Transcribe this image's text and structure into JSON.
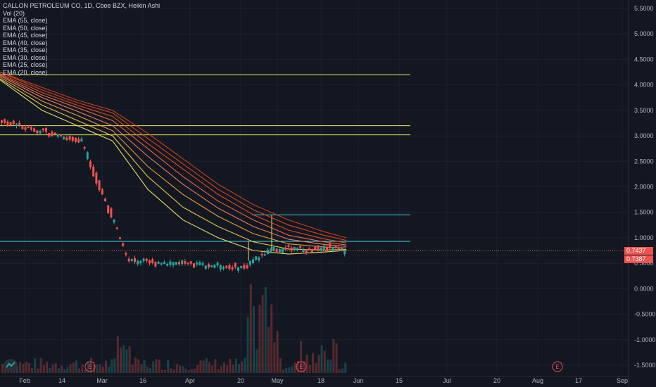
{
  "header": {
    "symbol_line": "CALLON PETROLEUM CO, 1D, Cboe BZX, Heikin Ashi",
    "indicators": [
      "Vol (20)",
      "EMA (55, close)",
      "EMA (50, close)",
      "EMA (45, close)",
      "EMA (40, close)",
      "EMA (35, close)",
      "EMA (30, close)",
      "EMA (25, close)",
      "EMA (20, close)"
    ]
  },
  "price_labels": {
    "last": "0.7437",
    "second": "0.7387"
  },
  "colors": {
    "background": "#131722",
    "grid": "#1e2230",
    "up": "#26a69a",
    "down": "#ef5350",
    "hline_yellow": "#e6e65a",
    "hline_cyan": "#4dd0e1",
    "last_price": "#ef5350"
  },
  "chart_data": {
    "type": "line",
    "title": "CALLON PETROLEUM CO, 1D, Cboe BZX, Heikin Ashi",
    "y_ticks": [
      "5.5000",
      "5.0000",
      "4.5000",
      "4.0000",
      "3.5000",
      "3.0000",
      "2.5000",
      "2.0000",
      "1.5000",
      "1.0000",
      "0.5000",
      "0.0000",
      "-0.5000",
      "-1.0000",
      "-1.5000"
    ],
    "x_ticks": [
      "Feb",
      "14",
      "Mar",
      "16",
      "Apr",
      "20",
      "May",
      "18",
      "Jun",
      "15",
      "Jul",
      "20",
      "Aug",
      "17",
      "Sep"
    ],
    "ylim": [
      -1.7,
      5.6
    ],
    "horizontal_levels": [
      {
        "value": 4.2,
        "color": "yellow"
      },
      {
        "value": 3.2,
        "color": "yellow"
      },
      {
        "value": 3.02,
        "color": "yellow"
      },
      {
        "value": 1.45,
        "color": "cyan"
      },
      {
        "value": 0.93,
        "color": "cyan"
      }
    ],
    "ema_series": [
      {
        "name": "EMA (55, close)",
        "values": [
          4.25,
          3.95,
          3.7,
          3.5,
          3.05,
          2.55,
          2.05,
          1.65,
          1.35,
          1.12,
          1.0
        ]
      },
      {
        "name": "EMA (50, close)",
        "values": [
          4.25,
          3.9,
          3.65,
          3.45,
          2.95,
          2.45,
          1.95,
          1.55,
          1.25,
          1.05,
          0.95
        ]
      },
      {
        "name": "EMA (45, close)",
        "values": [
          4.22,
          3.85,
          3.6,
          3.38,
          2.85,
          2.35,
          1.85,
          1.45,
          1.15,
          0.98,
          0.9
        ]
      },
      {
        "name": "EMA (40, close)",
        "values": [
          4.2,
          3.8,
          3.55,
          3.3,
          2.75,
          2.2,
          1.72,
          1.35,
          1.05,
          0.92,
          0.86
        ]
      },
      {
        "name": "EMA (35, close)",
        "values": [
          4.18,
          3.75,
          3.48,
          3.2,
          2.6,
          2.05,
          1.58,
          1.22,
          0.97,
          0.87,
          0.83
        ]
      },
      {
        "name": "EMA (30, close)",
        "values": [
          4.15,
          3.68,
          3.4,
          3.1,
          2.4,
          1.85,
          1.42,
          1.08,
          0.88,
          0.82,
          0.8
        ]
      },
      {
        "name": "EMA (25, close)",
        "values": [
          4.12,
          3.6,
          3.3,
          3.0,
          2.2,
          1.6,
          1.22,
          0.92,
          0.78,
          0.76,
          0.77
        ]
      },
      {
        "name": "EMA (20, close)",
        "values": [
          4.1,
          3.5,
          3.2,
          2.9,
          1.95,
          1.35,
          1.0,
          0.75,
          0.68,
          0.72,
          0.75
        ]
      }
    ],
    "last_price": 0.7437
  }
}
